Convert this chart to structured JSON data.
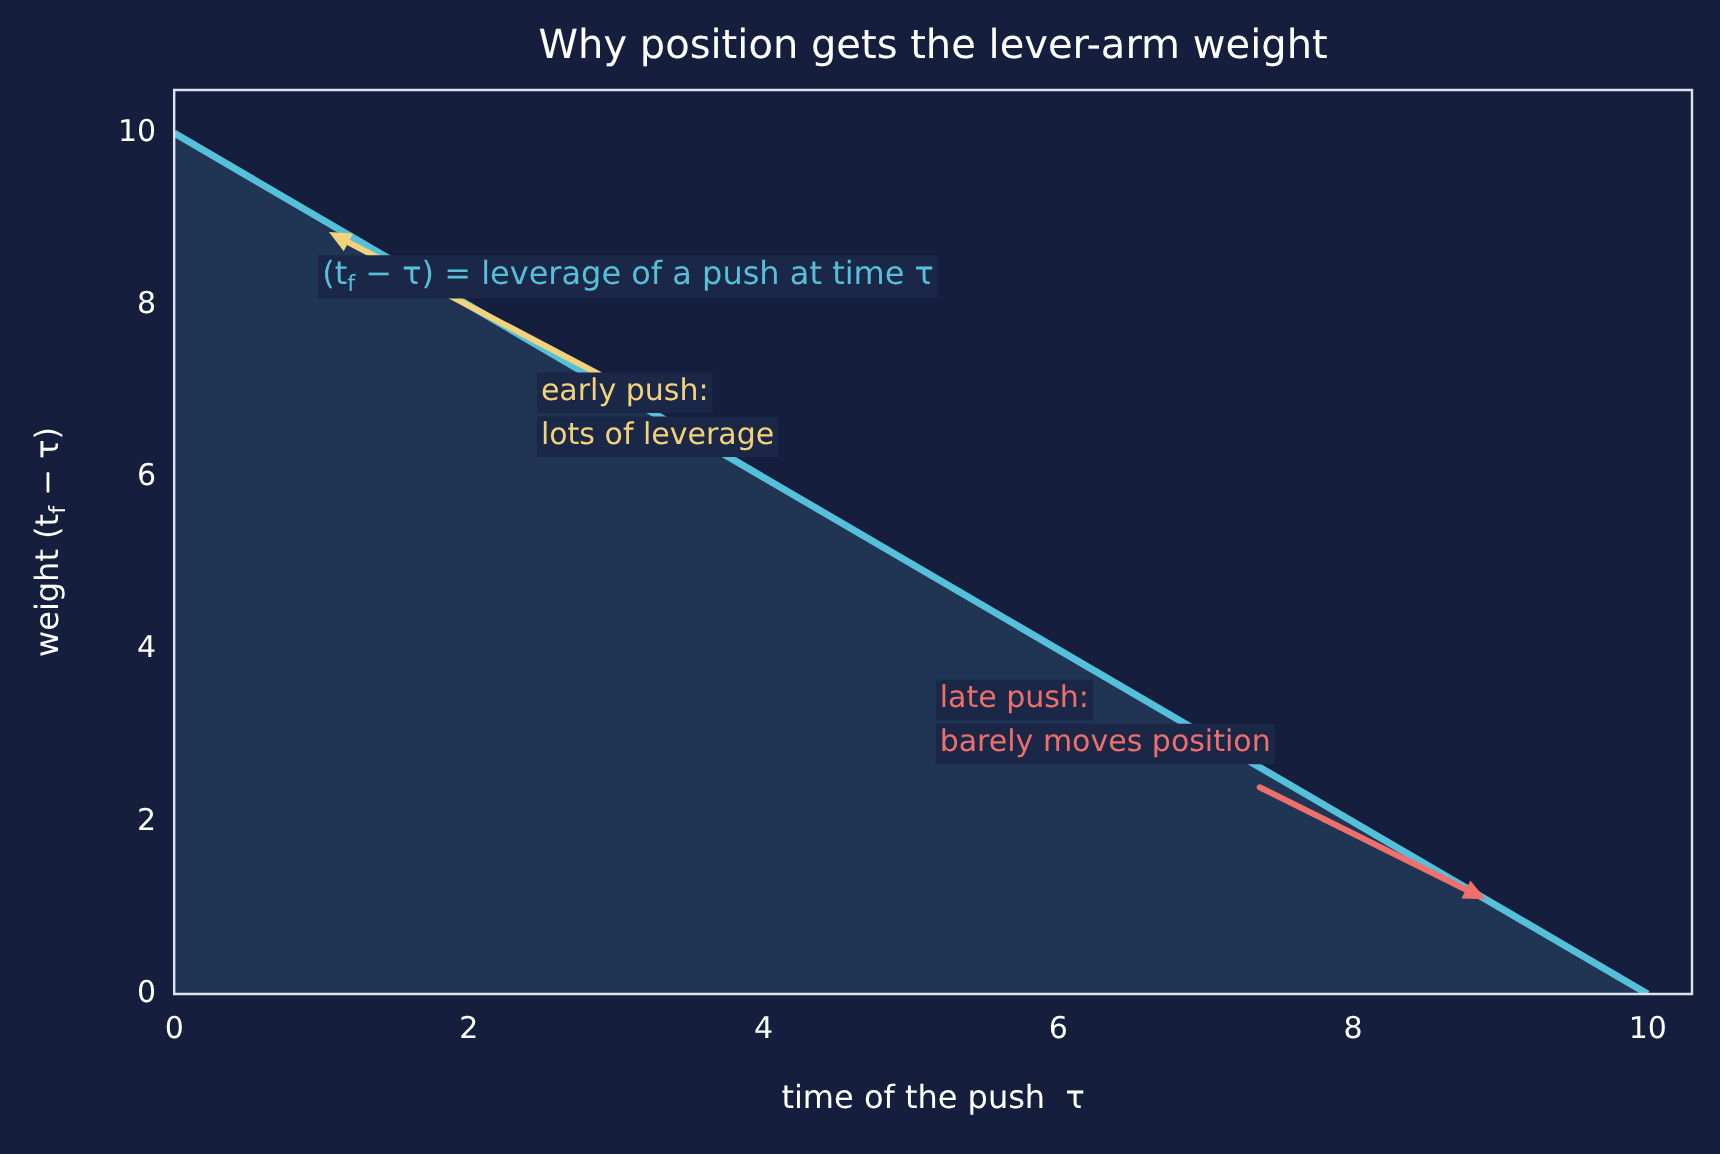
{
  "chart_data": {
    "type": "area",
    "title": "Why position gets the lever-arm weight",
    "xlabel": "time of the push  τ",
    "ylabel": "weight (t$_{f}$ − τ)",
    "x": [
      0,
      10
    ],
    "series": [
      {
        "color": "#56bfd9",
        "values": [
          10,
          0
        ]
      }
    ],
    "xlim": [
      0,
      10.3
    ],
    "ylim": [
      0,
      10.5
    ],
    "xticks": [
      0,
      2,
      4,
      6,
      8,
      10
    ],
    "yticks": [
      0,
      2,
      4,
      6,
      8,
      10
    ],
    "grid": false,
    "legend": false,
    "annotations": [
      "(t$_{f}$ − τ) = leverage of a push at time τ",
      {
        "text": "early push:\nlots of leverage",
        "x": 1.05,
        "y": 8.85
      },
      {
        "text": "late push:\nbarely moves position",
        "x": 8.9,
        "y": 1.1
      }
    ]
  }
}
